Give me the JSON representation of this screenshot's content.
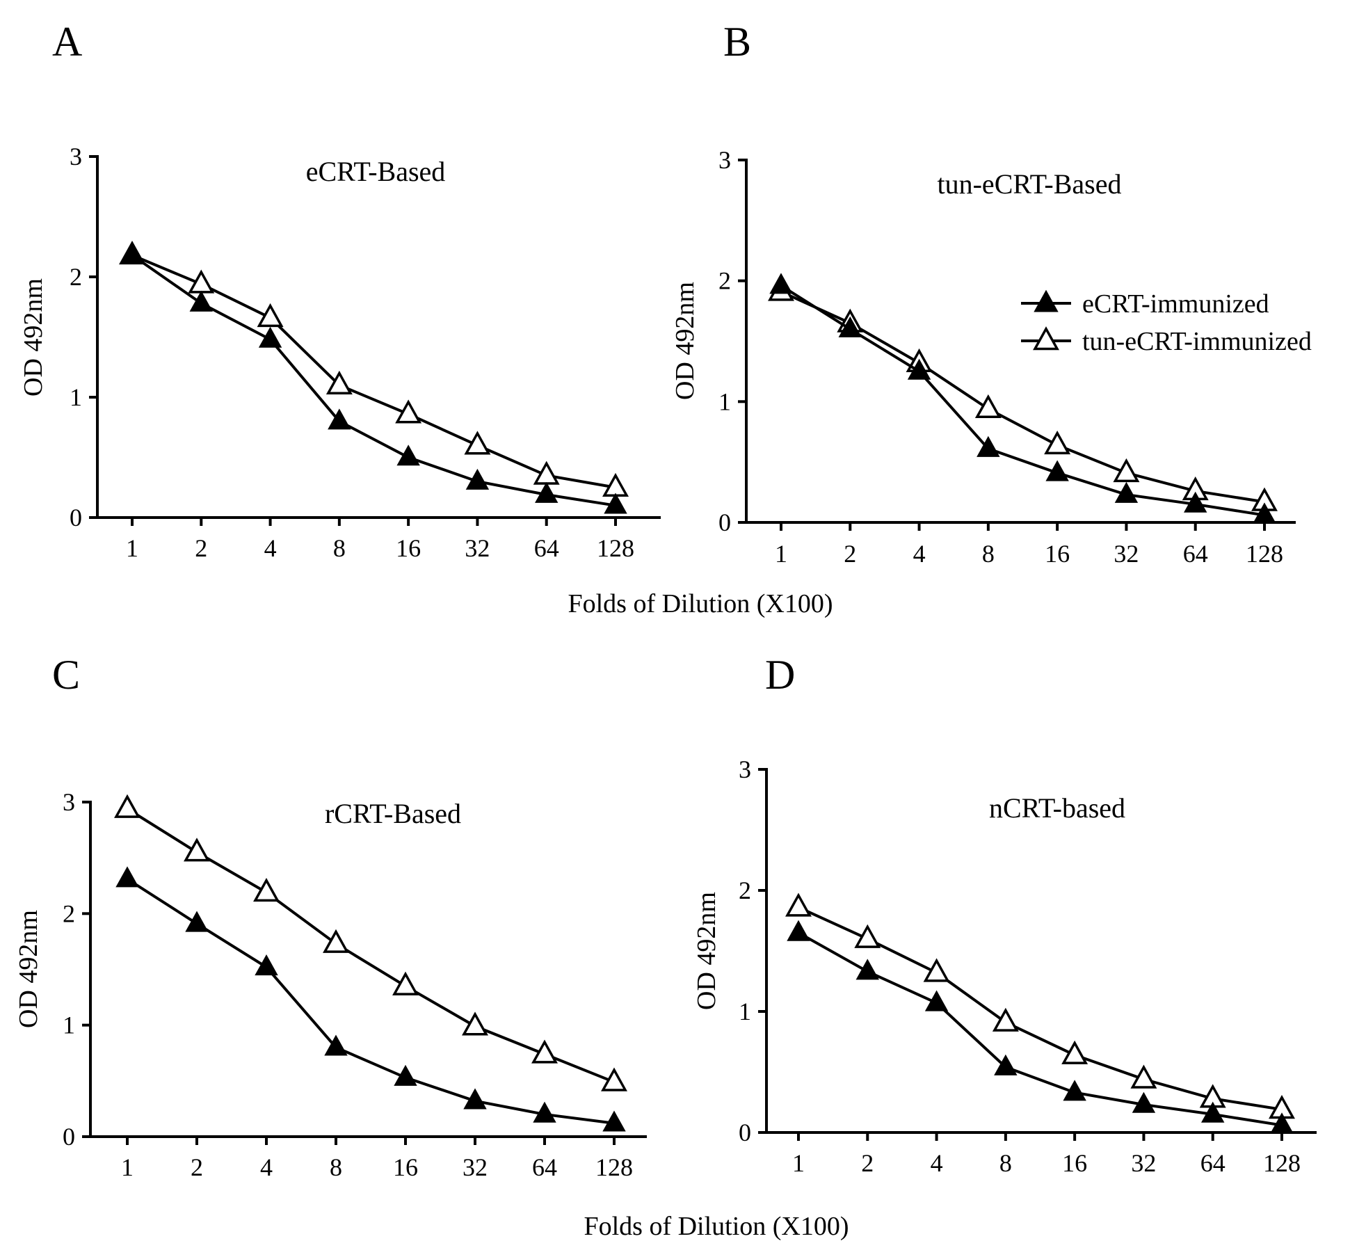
{
  "figure": {
    "shared_xlabel": "Folds of Dilution (X100)",
    "legend": [
      {
        "label": "eCRT-immunized",
        "marker": "filled-triangle"
      },
      {
        "label": "tun-eCRT-immunized",
        "marker": "open-triangle"
      }
    ]
  },
  "chart_data": [
    {
      "panel": "A",
      "type": "line",
      "title": "eCRT-Based",
      "xlabel": "Folds of Dilution (X100)",
      "ylabel": "OD 492nm",
      "categories": [
        "1",
        "2",
        "4",
        "8",
        "16",
        "32",
        "64",
        "128"
      ],
      "yticks": [
        "0",
        "1",
        "2",
        "3"
      ],
      "ylim": [
        0,
        3
      ],
      "series": [
        {
          "name": "eCRT-immunized",
          "marker": "filled-triangle",
          "values": [
            2.18,
            1.78,
            1.48,
            0.8,
            0.5,
            0.3,
            0.19,
            0.1
          ]
        },
        {
          "name": "tun-eCRT-immunized",
          "marker": "open-triangle",
          "values": [
            2.18,
            1.94,
            1.66,
            1.1,
            0.86,
            0.6,
            0.35,
            0.25
          ]
        }
      ]
    },
    {
      "panel": "B",
      "type": "line",
      "title": "tun-eCRT-Based",
      "xlabel": "Folds of Dilution (X100)",
      "ylabel": "OD 492nm",
      "categories": [
        "1",
        "2",
        "4",
        "8",
        "16",
        "32",
        "64",
        "128"
      ],
      "yticks": [
        "0",
        "1",
        "2",
        "3"
      ],
      "ylim": [
        0,
        3
      ],
      "legend_position": "right",
      "series": [
        {
          "name": "eCRT-immunized",
          "marker": "filled-triangle",
          "values": [
            1.96,
            1.6,
            1.25,
            0.61,
            0.41,
            0.23,
            0.15,
            0.06
          ]
        },
        {
          "name": "tun-eCRT-immunized",
          "marker": "open-triangle",
          "values": [
            1.91,
            1.65,
            1.32,
            0.94,
            0.64,
            0.41,
            0.26,
            0.17
          ]
        }
      ]
    },
    {
      "panel": "C",
      "type": "line",
      "title": "rCRT-Based",
      "xlabel": "Folds of Dilution (X100)",
      "ylabel": "OD 492nm",
      "categories": [
        "1",
        "2",
        "4",
        "8",
        "16",
        "32",
        "64",
        "128"
      ],
      "yticks": [
        "0",
        "1",
        "2",
        "3"
      ],
      "ylim": [
        0,
        3
      ],
      "series": [
        {
          "name": "eCRT-immunized",
          "marker": "filled-triangle",
          "values": [
            2.31,
            1.91,
            1.52,
            0.8,
            0.53,
            0.32,
            0.2,
            0.12
          ]
        },
        {
          "name": "tun-eCRT-immunized",
          "marker": "open-triangle",
          "values": [
            2.94,
            2.55,
            2.19,
            1.73,
            1.35,
            0.99,
            0.74,
            0.49
          ]
        }
      ]
    },
    {
      "panel": "D",
      "type": "line",
      "title": "nCRT-based",
      "xlabel": "Folds of Dilution (X100)",
      "ylabel": "OD 492nm",
      "categories": [
        "1",
        "2",
        "4",
        "8",
        "16",
        "32",
        "64",
        "128"
      ],
      "yticks": [
        "0",
        "1",
        "2",
        "3"
      ],
      "ylim": [
        0,
        3
      ],
      "series": [
        {
          "name": "eCRT-immunized",
          "marker": "filled-triangle",
          "values": [
            1.65,
            1.33,
            1.07,
            0.54,
            0.33,
            0.23,
            0.15,
            0.06
          ]
        },
        {
          "name": "tun-eCRT-immunized",
          "marker": "open-triangle",
          "values": [
            1.86,
            1.6,
            1.32,
            0.91,
            0.64,
            0.44,
            0.28,
            0.19
          ]
        }
      ]
    }
  ]
}
